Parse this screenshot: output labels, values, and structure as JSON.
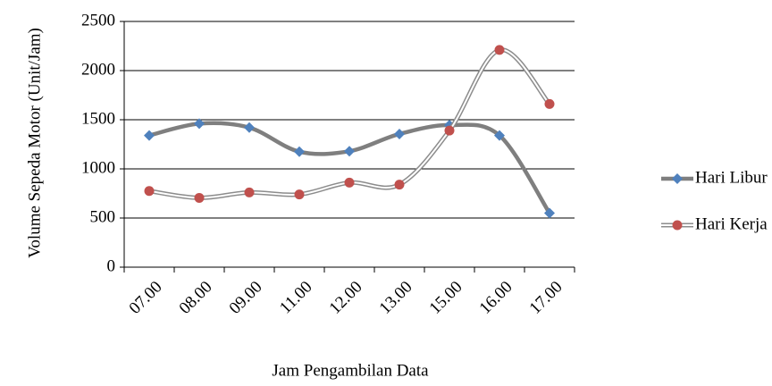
{
  "chart_data": {
    "type": "line",
    "smooth": true,
    "grid": true,
    "legend": "right",
    "x_label": "Jam Pengambilan Data",
    "y_label": "Volume Sepeda Motor (Unit/Jam)",
    "categories": [
      "07.00",
      "08.00",
      "09.00",
      "11.00",
      "12.00",
      "13.00",
      "15.00",
      "16.00",
      "17.00"
    ],
    "series": [
      {
        "name": "Hari Libur",
        "color": "#4f81bd",
        "line_color": "#7f7f7f",
        "marker": "diamond",
        "line_style": "solid",
        "values": [
          1340,
          1460,
          1420,
          1175,
          1180,
          1355,
          1445,
          1340,
          550
        ]
      },
      {
        "name": "Hari Kerja",
        "color": "#c0504d",
        "line_color": "#8c8c8c",
        "marker": "circle",
        "line_style": "double",
        "values": [
          775,
          705,
          760,
          740,
          860,
          840,
          1390,
          2210,
          1660
        ]
      }
    ],
    "ylim": [
      0,
      2500
    ],
    "yticks": [
      0,
      500,
      1000,
      1500,
      2000,
      2500
    ]
  }
}
